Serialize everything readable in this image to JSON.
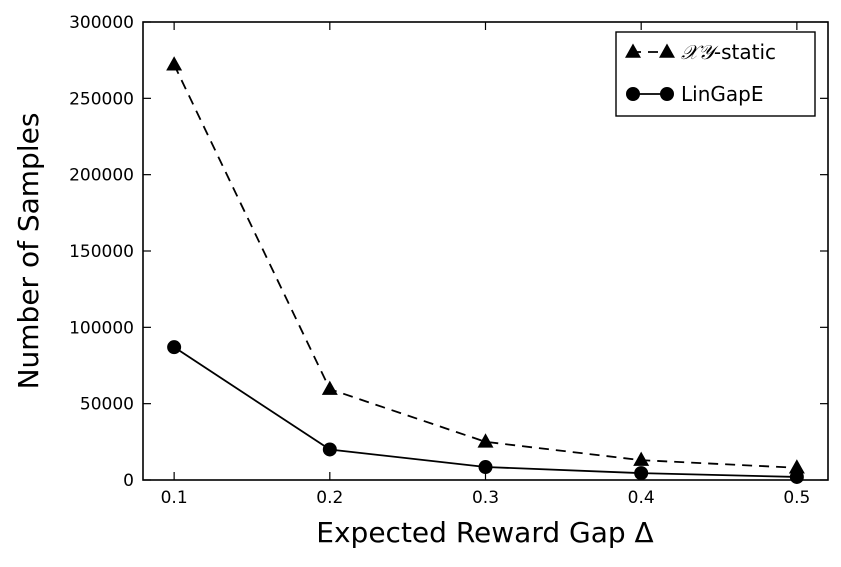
{
  "chart_data": {
    "type": "line",
    "x": [
      0.1,
      0.2,
      0.3,
      0.4,
      0.5
    ],
    "series": [
      {
        "name": "XY-static",
        "name_parts": {
          "symbol": "𝒳𝒴",
          "suffix": "-static"
        },
        "values": [
          272000,
          59500,
          25000,
          13000,
          8000
        ],
        "line_style": "dashed",
        "marker": "triangle",
        "color": "#000000"
      },
      {
        "name": "LinGapE",
        "values": [
          87000,
          20000,
          8500,
          4500,
          2000
        ],
        "line_style": "solid",
        "marker": "circle",
        "color": "#000000"
      }
    ],
    "xlabel": "Expected Reward Gap Δ",
    "ylabel": "Number of Samples",
    "xlim": [
      0.08,
      0.52
    ],
    "ylim": [
      0,
      300000
    ],
    "xticks": [
      "0.1",
      "0.2",
      "0.3",
      "0.4",
      "0.5"
    ],
    "yticks": [
      "0",
      "50000",
      "100000",
      "150000",
      "200000",
      "250000",
      "300000"
    ],
    "grid": false,
    "legend_position": "top-right"
  }
}
